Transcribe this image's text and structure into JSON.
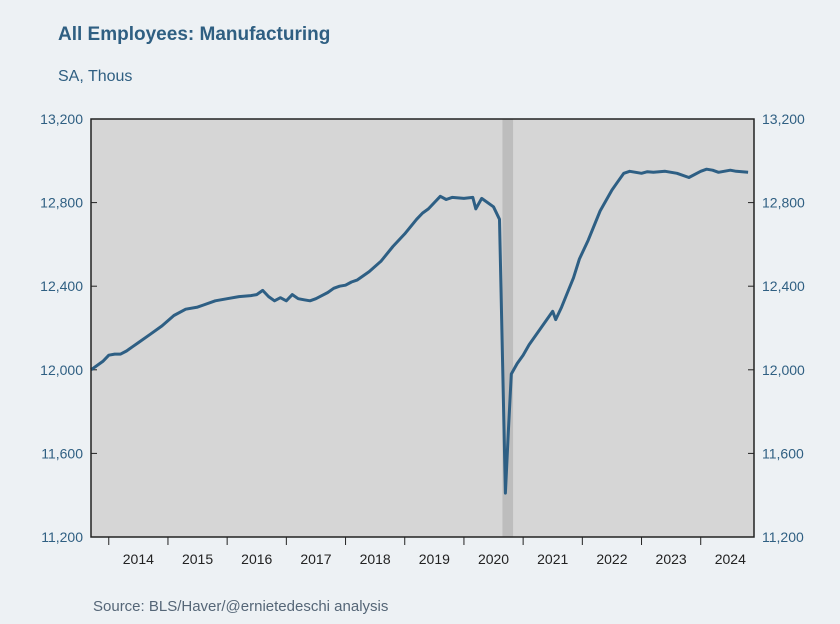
{
  "chart_data": {
    "type": "line",
    "title": "All Employees: Manufacturing",
    "subtitle": "SA, Thous",
    "source": "Source:  BLS/Haver/@ernietedeschi analysis",
    "ylim": [
      11200,
      13200
    ],
    "yticks": [
      11200,
      11600,
      12000,
      12400,
      12800,
      13200
    ],
    "ytick_labels": [
      "11,200",
      "11,600",
      "12,000",
      "12,400",
      "12,800",
      "13,200"
    ],
    "xlim": [
      2013.2,
      2024.4
    ],
    "xtick_labels": [
      "2014",
      "2015",
      "2016",
      "2017",
      "2018",
      "2019",
      "2020",
      "2021",
      "2022",
      "2023",
      "2024"
    ],
    "x_centers": [
      2014,
      2015,
      2016,
      2017,
      2018,
      2019,
      2020,
      2021,
      2022,
      2023,
      2024
    ],
    "recession": [
      2020.15,
      2020.33
    ],
    "colors": {
      "line": "#2e5f84",
      "plot_bg": "#d6d6d6",
      "recession": "#bdbdbd"
    },
    "grid": false,
    "series": [
      {
        "x": [
          2013.2,
          2013.3,
          2013.4,
          2013.5,
          2013.6,
          2013.7,
          2013.8,
          2013.9,
          2014.0,
          2014.2,
          2014.4,
          2014.6,
          2014.8,
          2015.0,
          2015.1,
          2015.3,
          2015.5,
          2015.7,
          2015.9,
          2016.0,
          2016.1,
          2016.2,
          2016.3,
          2016.4,
          2016.5,
          2016.6,
          2016.7,
          2016.8,
          2016.9,
          2017.0,
          2017.1,
          2017.2,
          2017.3,
          2017.4,
          2017.5,
          2017.6,
          2017.7,
          2017.9,
          2018.1,
          2018.3,
          2018.5,
          2018.7,
          2018.8,
          2018.9,
          2019.0,
          2019.1,
          2019.2,
          2019.3,
          2019.5,
          2019.65,
          2019.7,
          2019.8,
          2020.0,
          2020.1,
          2020.2,
          2020.25,
          2020.3,
          2020.4,
          2020.5,
          2020.6,
          2020.8,
          2021.0,
          2021.05,
          2021.15,
          2021.25,
          2021.35,
          2021.45,
          2021.6,
          2021.8,
          2022.0,
          2022.1,
          2022.2,
          2022.3,
          2022.4,
          2022.5,
          2022.6,
          2022.7,
          2022.9,
          2023.1,
          2023.3,
          2023.5,
          2023.6,
          2023.7,
          2023.8,
          2024.0,
          2024.1,
          2024.3
        ],
        "values": [
          12000,
          12020,
          12040,
          12070,
          12075,
          12075,
          12090,
          12110,
          12130,
          12170,
          12210,
          12260,
          12290,
          12300,
          12310,
          12330,
          12340,
          12350,
          12355,
          12360,
          12380,
          12350,
          12330,
          12345,
          12330,
          12360,
          12340,
          12335,
          12330,
          12340,
          12355,
          12370,
          12390,
          12400,
          12405,
          12420,
          12430,
          12470,
          12520,
          12590,
          12650,
          12720,
          12750,
          12770,
          12800,
          12830,
          12815,
          12825,
          12820,
          12825,
          12770,
          12820,
          12780,
          12720,
          11410,
          11700,
          11980,
          12030,
          12070,
          12120,
          12200,
          12280,
          12240,
          12300,
          12370,
          12440,
          12530,
          12620,
          12760,
          12860,
          12900,
          12940,
          12950,
          12945,
          12940,
          12948,
          12945,
          12950,
          12940,
          12920,
          12950,
          12960,
          12955,
          12945,
          12955,
          12950,
          12945
        ]
      }
    ]
  }
}
